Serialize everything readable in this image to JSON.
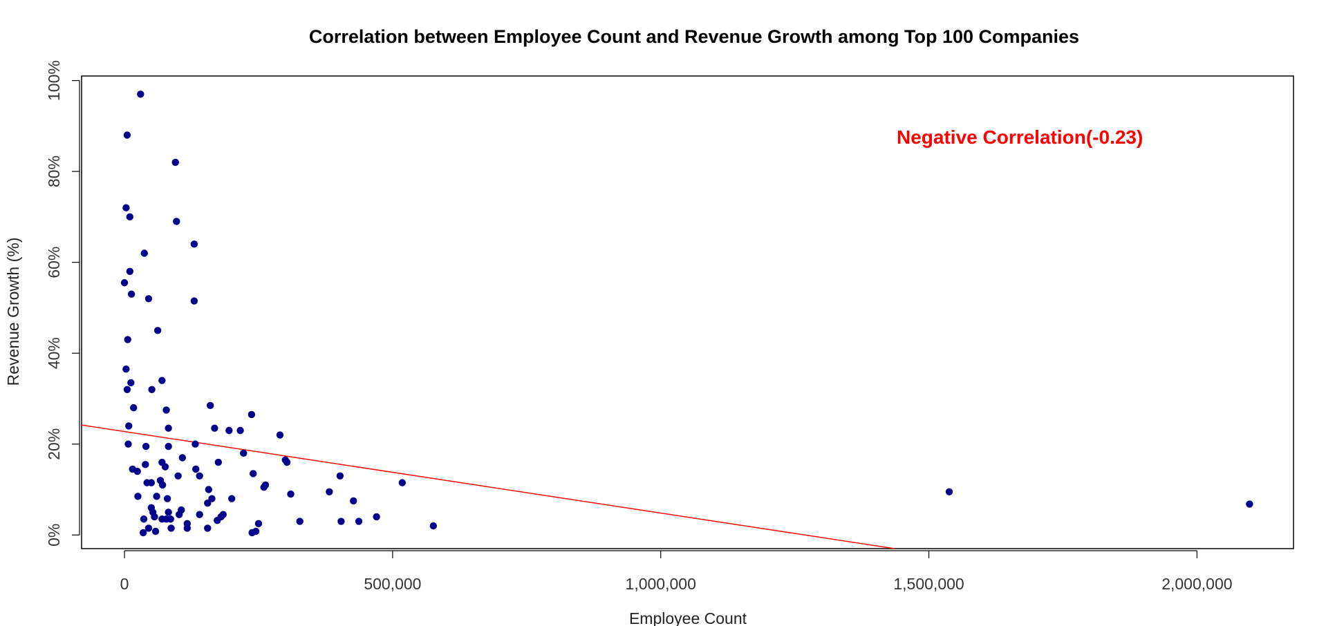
{
  "chart_data": {
    "type": "scatter",
    "title": "Correlation between Employee Count and Revenue Growth among Top 100 Companies",
    "xlabel": "Employee Count",
    "ylabel": "Revenue Growth (%)",
    "xlim": [
      -80000,
      2180000
    ],
    "ylim": [
      -3,
      101
    ],
    "x_ticks": [
      0,
      500000,
      1000000,
      1500000,
      2000000
    ],
    "x_tick_labels": [
      "0",
      "500,000",
      "1,000,000",
      "1,500,000",
      "2,000,000"
    ],
    "y_ticks": [
      0,
      20,
      40,
      60,
      80,
      100
    ],
    "y_tick_labels": [
      "0%",
      "20%",
      "40%",
      "60%",
      "80%",
      "100%"
    ],
    "grid": false,
    "point_color": "#00008B",
    "trend_color": "#FF0000",
    "annotation": {
      "text": "Negative Correlation(-0.23)",
      "color": "#FF0000"
    },
    "trendline": {
      "x": [
        -80000,
        1436000
      ],
      "y": [
        24.2,
        -3
      ]
    },
    "points": [
      [
        30000,
        97
      ],
      [
        5000,
        88
      ],
      [
        95000,
        82
      ],
      [
        3000,
        72
      ],
      [
        10000,
        70
      ],
      [
        97000,
        69
      ],
      [
        130000,
        64
      ],
      [
        37000,
        62
      ],
      [
        0,
        55.5
      ],
      [
        10000,
        58
      ],
      [
        13000,
        53
      ],
      [
        45000,
        52
      ],
      [
        130000,
        51.5
      ],
      [
        62000,
        45
      ],
      [
        6000,
        43
      ],
      [
        3000,
        36.5
      ],
      [
        12000,
        33.5
      ],
      [
        70000,
        34
      ],
      [
        5000,
        32
      ],
      [
        51000,
        32
      ],
      [
        17000,
        28
      ],
      [
        78000,
        27.5
      ],
      [
        160000,
        28.5
      ],
      [
        237000,
        26.5
      ],
      [
        8000,
        24
      ],
      [
        82000,
        23.5
      ],
      [
        168000,
        23.5
      ],
      [
        195000,
        23
      ],
      [
        216000,
        23
      ],
      [
        290000,
        22
      ],
      [
        7000,
        20
      ],
      [
        40000,
        19.5
      ],
      [
        82000,
        19.5
      ],
      [
        132000,
        20
      ],
      [
        222000,
        18
      ],
      [
        300000,
        16.5
      ],
      [
        303000,
        16
      ],
      [
        108000,
        17
      ],
      [
        175000,
        16
      ],
      [
        39000,
        15.5
      ],
      [
        70000,
        16
      ],
      [
        76000,
        15
      ],
      [
        15000,
        14.5
      ],
      [
        24000,
        14
      ],
      [
        133000,
        14.5
      ],
      [
        140000,
        13
      ],
      [
        100000,
        13
      ],
      [
        240000,
        13.5
      ],
      [
        402000,
        13
      ],
      [
        518000,
        11.5
      ],
      [
        42000,
        11.5
      ],
      [
        50000,
        11.5
      ],
      [
        67000,
        12
      ],
      [
        71000,
        11
      ],
      [
        260000,
        10.5
      ],
      [
        263000,
        11
      ],
      [
        157000,
        10
      ],
      [
        382000,
        9.5
      ],
      [
        310000,
        9
      ],
      [
        25000,
        8.5
      ],
      [
        60000,
        8.5
      ],
      [
        80000,
        8
      ],
      [
        200000,
        8
      ],
      [
        163000,
        8
      ],
      [
        155000,
        7
      ],
      [
        427000,
        7.5
      ],
      [
        1538000,
        9.5
      ],
      [
        2098000,
        6.8
      ],
      [
        50000,
        6
      ],
      [
        53000,
        5
      ],
      [
        82000,
        5
      ],
      [
        106000,
        5.5
      ],
      [
        102000,
        4.5
      ],
      [
        140000,
        4.5
      ],
      [
        184000,
        4.5
      ],
      [
        180000,
        4
      ],
      [
        470000,
        4
      ],
      [
        56000,
        4
      ],
      [
        36000,
        3.5
      ],
      [
        70000,
        3.5
      ],
      [
        78000,
        3.5
      ],
      [
        86000,
        3.5
      ],
      [
        173000,
        3.2
      ],
      [
        404000,
        3
      ],
      [
        437000,
        3
      ],
      [
        327000,
        3
      ],
      [
        250000,
        2.5
      ],
      [
        117000,
        2.5
      ],
      [
        45000,
        1.5
      ],
      [
        87000,
        1.5
      ],
      [
        117000,
        1.5
      ],
      [
        155000,
        1.5
      ],
      [
        576000,
        2
      ],
      [
        35000,
        0.5
      ],
      [
        58000,
        0.8
      ],
      [
        238000,
        0.5
      ],
      [
        245000,
        0.8
      ]
    ]
  }
}
